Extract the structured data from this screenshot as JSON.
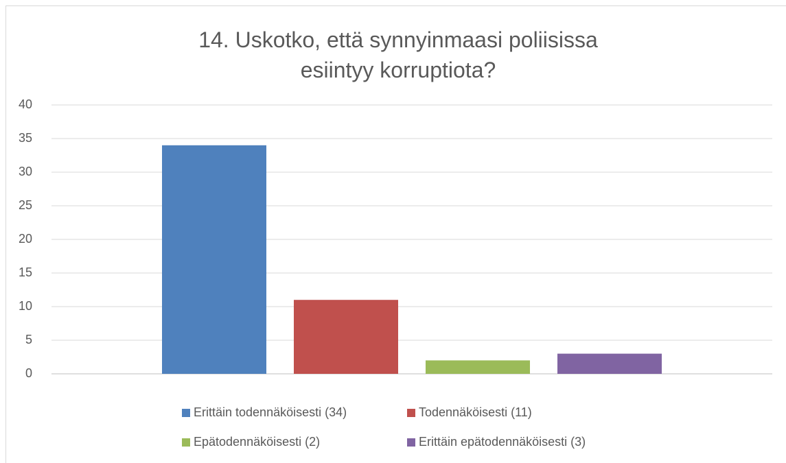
{
  "chart_data": {
    "type": "bar",
    "title": "14. Uskotko, että synnyinmaasi poliisissa esiintyy korruptiota?",
    "categories": [
      null
    ],
    "series": [
      {
        "name": "Erittäin todennäköisesti (34)",
        "color": "#4f81bd",
        "values": [
          34
        ]
      },
      {
        "name": "Todennäköisesti (11)",
        "color": "#c0504d",
        "values": [
          11
        ]
      },
      {
        "name": "Epätodennäköisesti (2)",
        "color": "#9bbb59",
        "values": [
          2
        ]
      },
      {
        "name": "Erittäin epätodennäköisesti (3)",
        "color": "#8064a2",
        "values": [
          3
        ]
      }
    ],
    "ylim": [
      0,
      40
    ],
    "yticks": [
      0,
      5,
      10,
      15,
      20,
      25,
      30,
      35,
      40
    ],
    "grid": true,
    "legend": "bottom"
  }
}
